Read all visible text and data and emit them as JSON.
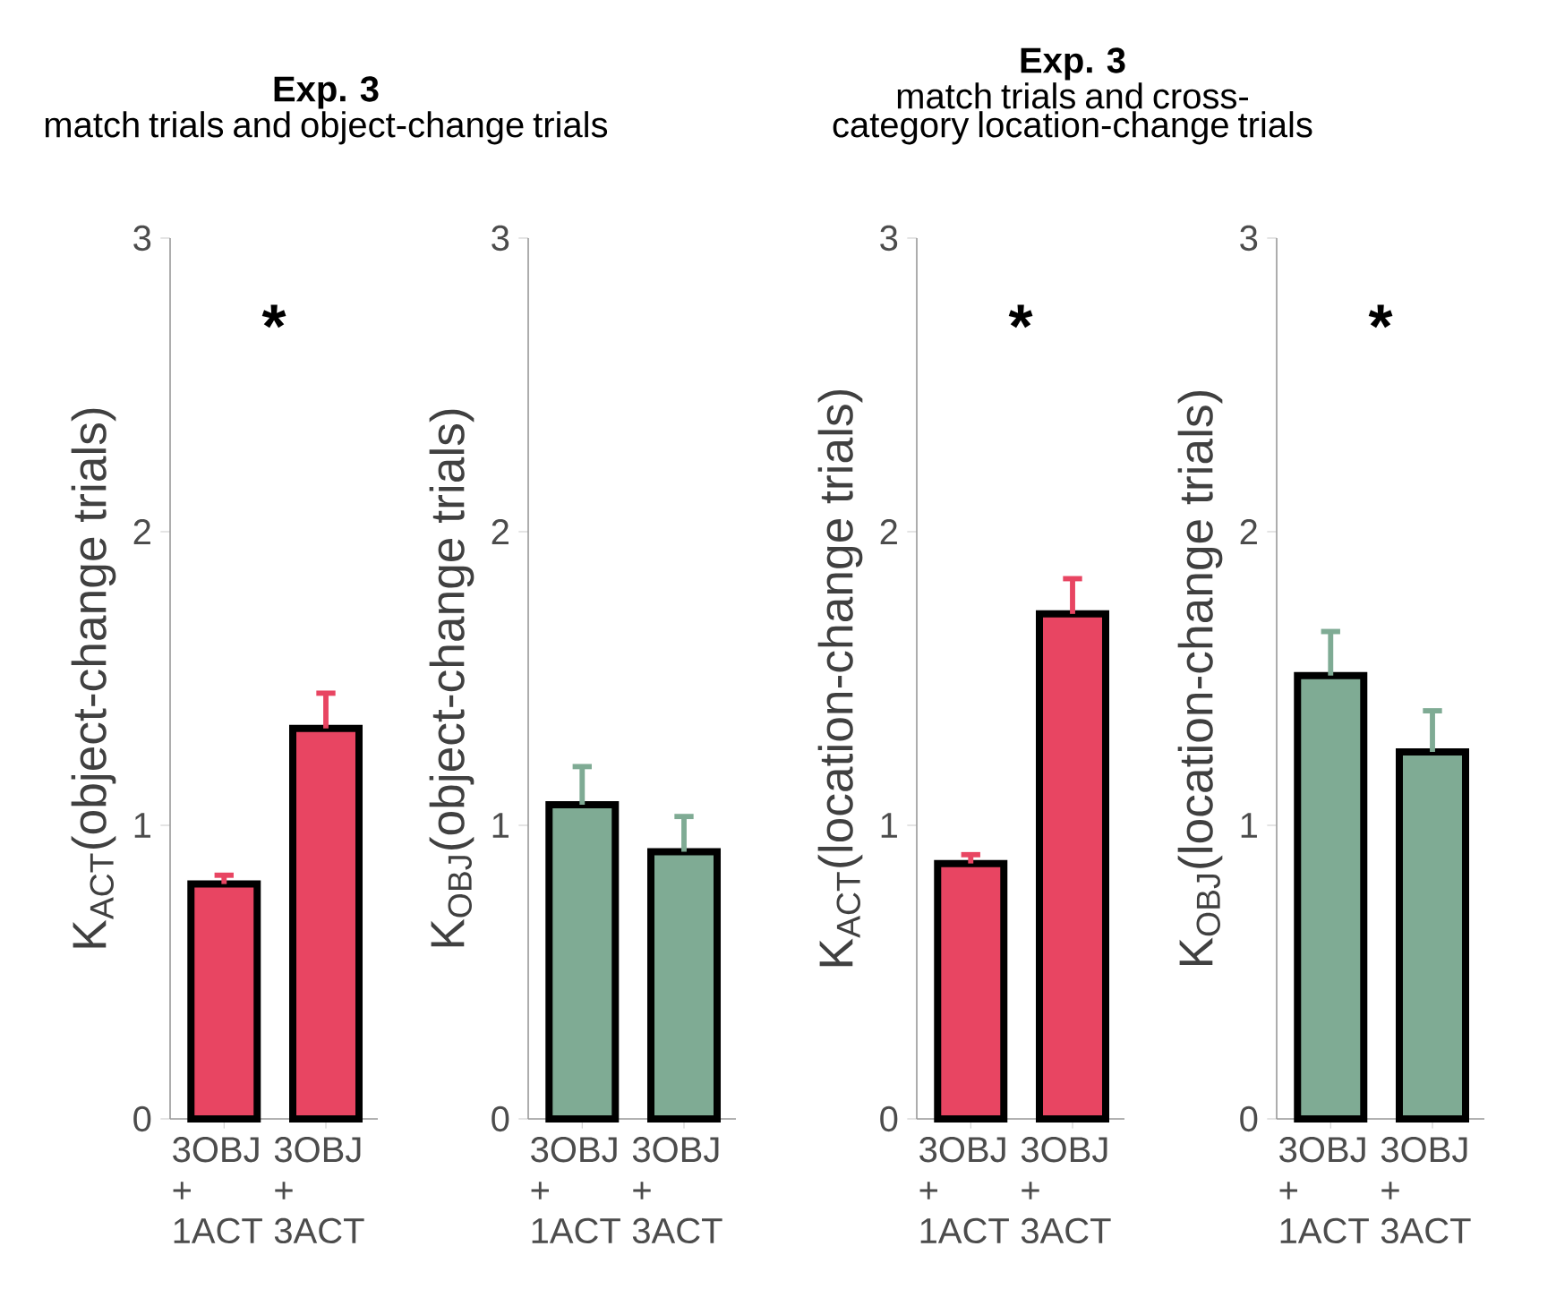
{
  "chart_data": [
    {
      "type": "bar",
      "title": "Exp. 3",
      "subtitle": "match trials and object-change trials",
      "ylabel": "K$_{ACT}$(object-change trials)",
      "categories": [
        "3OBJ + 1ACT",
        "3OBJ + 3ACT"
      ],
      "values": [
        0.8,
        1.33
      ],
      "errors": [
        0.03,
        0.12
      ],
      "color": "#e84562",
      "ylim": [
        0,
        3
      ],
      "yticks": [
        0,
        1,
        2,
        3
      ],
      "annotations": [
        "*"
      ]
    },
    {
      "type": "bar",
      "ylabel": "K$_{OBJ}$(object-change trials)",
      "categories": [
        "3OBJ + 1ACT",
        "3OBJ + 3ACT"
      ],
      "values": [
        1.07,
        0.91
      ],
      "errors": [
        0.13,
        0.12
      ],
      "color": "#7fab94",
      "ylim": [
        0,
        3
      ],
      "yticks": [
        0,
        1,
        2,
        3
      ]
    },
    {
      "type": "bar",
      "title": "Exp. 3",
      "subtitle": "match trials and cross-category location-change trials",
      "ylabel": "K$_{ACT}$(location-change trials)",
      "categories": [
        "3OBJ + 1ACT",
        "3OBJ + 3ACT"
      ],
      "values": [
        0.87,
        1.72
      ],
      "errors": [
        0.03,
        0.12
      ],
      "color": "#e84562",
      "ylim": [
        0,
        3
      ],
      "yticks": [
        0,
        1,
        2,
        3
      ],
      "annotations": [
        "*"
      ]
    },
    {
      "type": "bar",
      "ylabel": "K$_{OBJ}$(location-change trials)",
      "categories": [
        "3OBJ + 1ACT",
        "3OBJ + 3ACT"
      ],
      "values": [
        1.51,
        1.25
      ],
      "errors": [
        0.15,
        0.14
      ],
      "color": "#7fab94",
      "ylim": [
        0,
        3
      ],
      "yticks": [
        0,
        1,
        2,
        3
      ],
      "annotations": [
        "*"
      ]
    }
  ]
}
